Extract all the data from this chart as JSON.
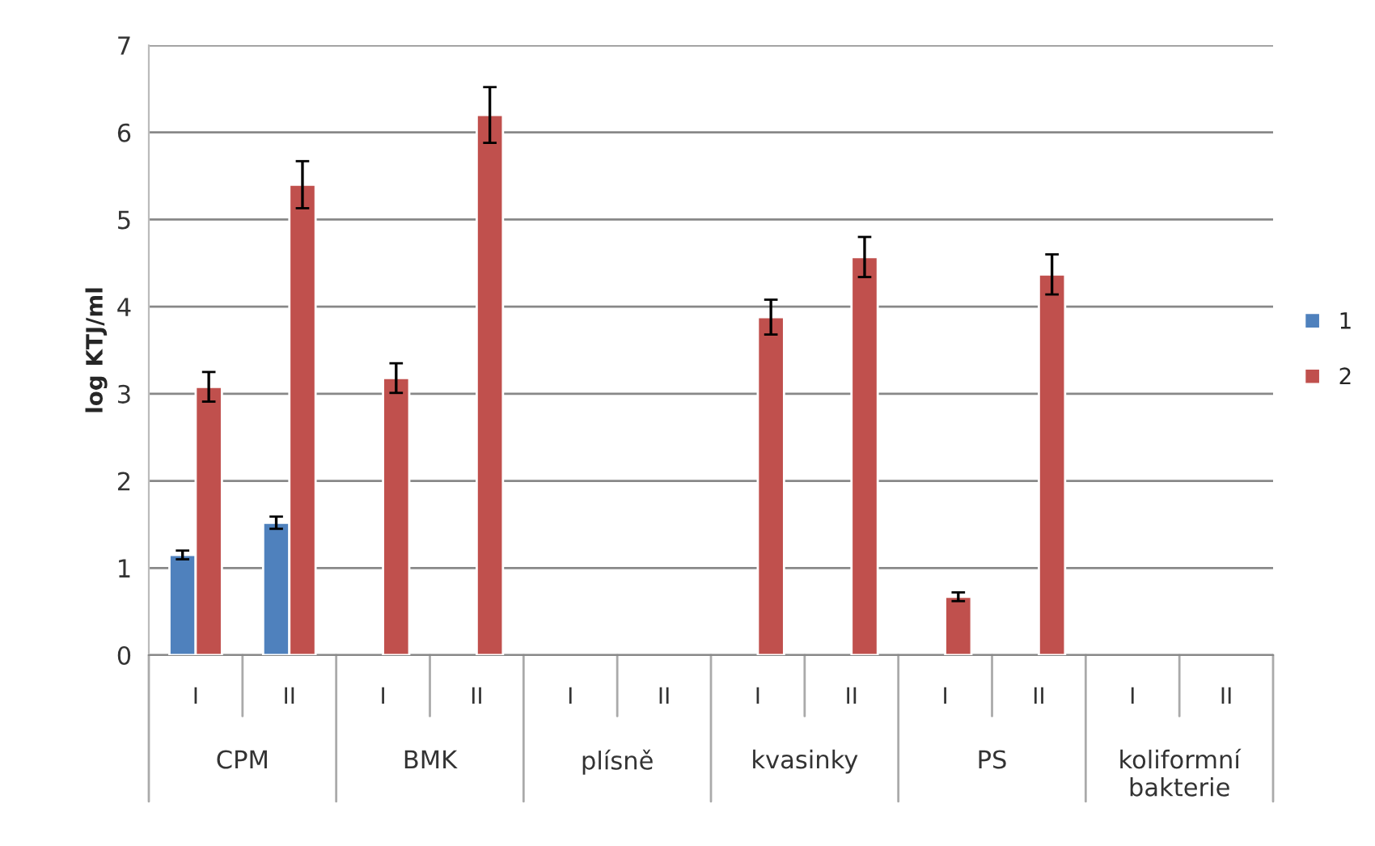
{
  "chart_data": {
    "type": "bar",
    "ylabel": "log KTJ/ml",
    "categories": [
      "I",
      "II",
      "I",
      "II",
      "I",
      "II",
      "I",
      "II",
      "I",
      "II",
      "I",
      "II"
    ],
    "annotations": [
      "CPM",
      "BMK",
      "plísně",
      "kvasinky",
      "PS",
      "koliformní\nbakterie"
    ],
    "series": [
      {
        "name": "1",
        "color": "#4f81bd",
        "values": [
          1.15,
          1.52,
          null,
          null,
          null,
          null,
          null,
          null,
          null,
          null,
          null,
          null
        ],
        "errors": [
          0.05,
          0.07,
          null,
          null,
          null,
          null,
          null,
          null,
          null,
          null,
          null,
          null
        ]
      },
      {
        "name": "2",
        "color": "#c0504d",
        "values": [
          3.08,
          5.4,
          3.18,
          6.2,
          null,
          null,
          3.88,
          4.57,
          0.67,
          4.37,
          null,
          null
        ],
        "errors": [
          0.17,
          0.27,
          0.17,
          0.32,
          null,
          null,
          0.2,
          0.23,
          0.05,
          0.23,
          null,
          null
        ]
      }
    ],
    "ylim": [
      0,
      7
    ],
    "yticks": [
      0,
      1,
      2,
      3,
      4,
      5,
      6,
      7
    ],
    "grid": "y",
    "legend": "right"
  }
}
